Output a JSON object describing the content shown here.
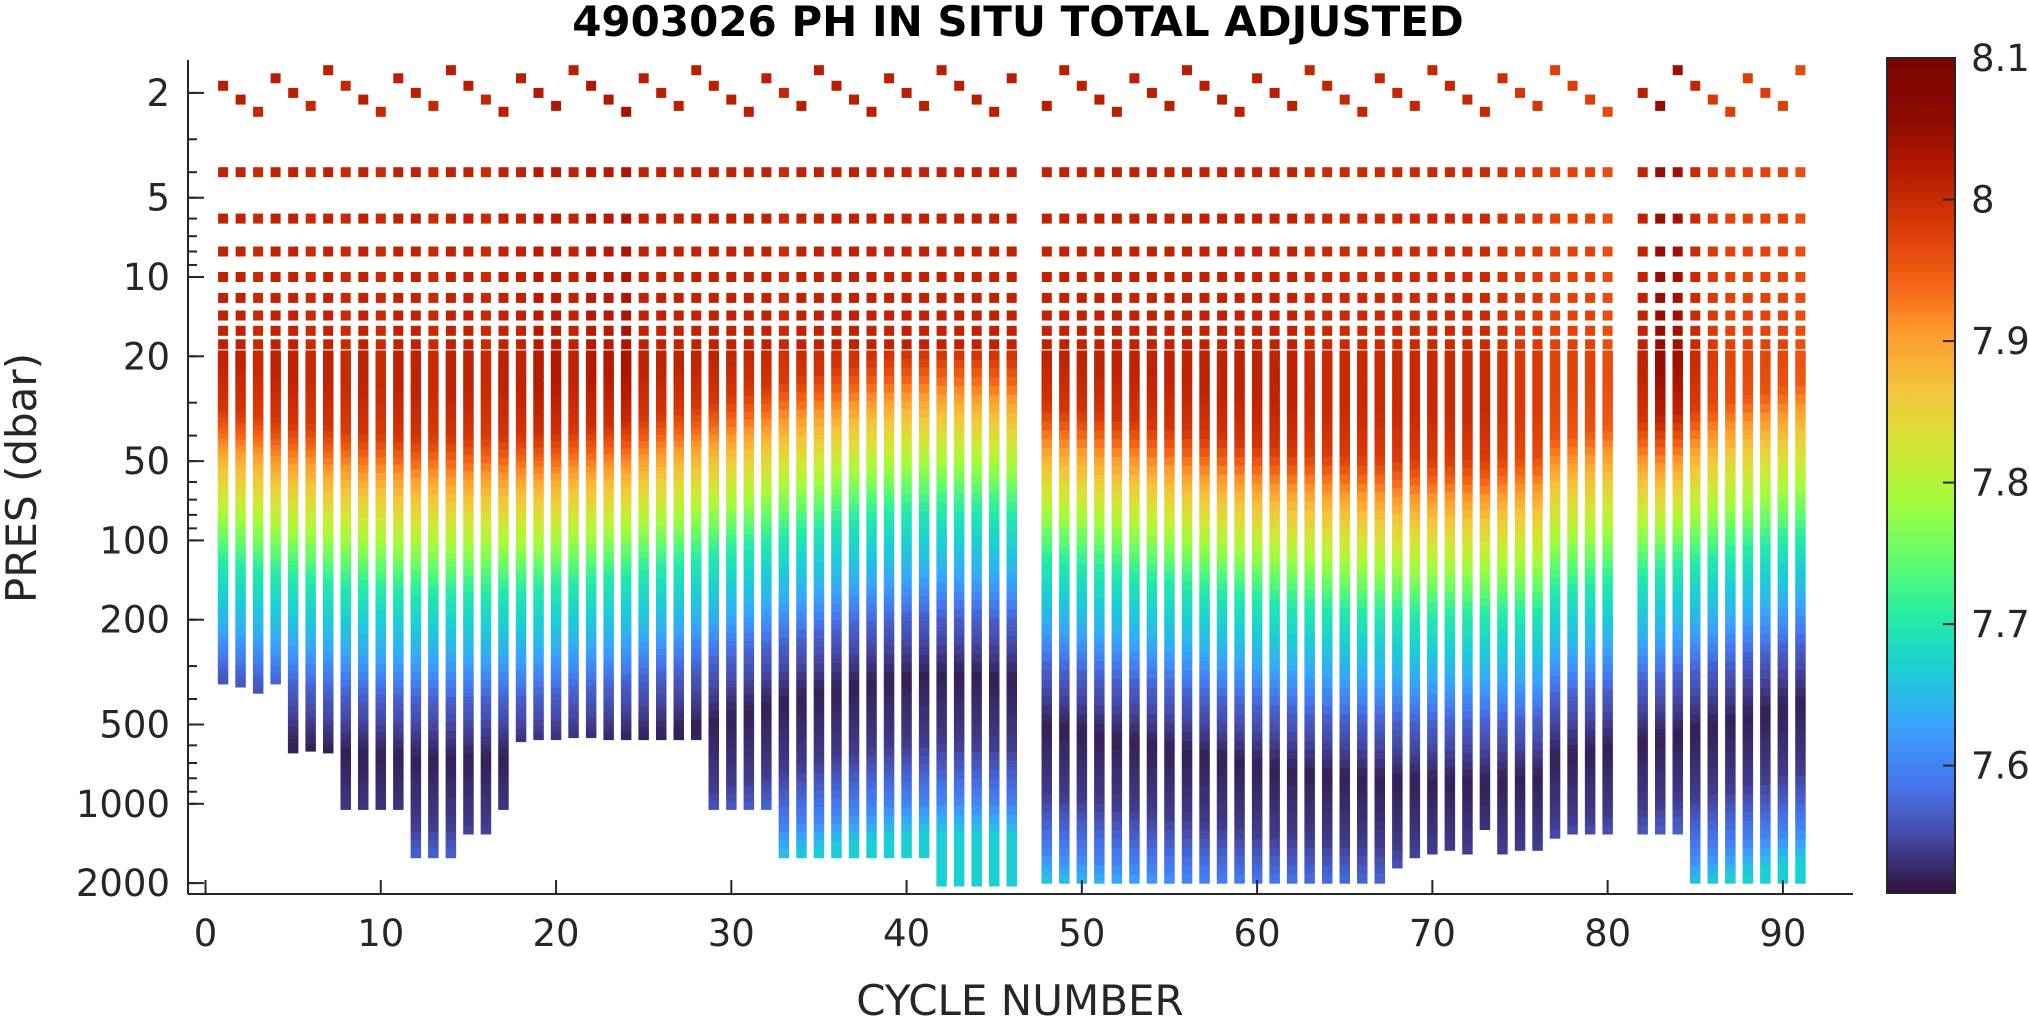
{
  "chart_data": {
    "type": "heatmap",
    "title": "4903026  PH IN SITU TOTAL ADJUSTED",
    "xlabel": "CYCLE NUMBER",
    "ylabel": "PRES (dbar)",
    "xlim": [
      -1,
      94
    ],
    "ylim": [
      1.5,
      2200
    ],
    "y_scale": "log",
    "x_ticks": [
      0,
      10,
      20,
      30,
      40,
      50,
      60,
      70,
      80,
      90
    ],
    "x_tick_labels": [
      "0",
      "10",
      "20",
      "30",
      "40",
      "50",
      "60",
      "70",
      "80",
      "90"
    ],
    "y_ticks": [
      2,
      5,
      10,
      20,
      50,
      100,
      200,
      500,
      1000,
      2000
    ],
    "y_tick_labels": [
      "2",
      "5",
      "10",
      "20",
      "50",
      "100",
      "200",
      "500",
      "1000",
      "2000"
    ],
    "grid": false,
    "colormap": "turbo",
    "colorbar": {
      "clim": [
        7.51,
        8.1
      ],
      "ticks": [
        7.6,
        7.7,
        7.8,
        7.9,
        8.0,
        8.1
      ],
      "tick_labels": [
        "7.6",
        "7.7",
        "7.8",
        "7.9",
        "8",
        "8.1"
      ]
    },
    "discrete_sample_pressures": [
      6,
      8,
      10,
      12,
      14,
      16,
      18
    ],
    "continuous_top_pressure": 19,
    "profiles": [
      [
        1,
        8.01,
        350
      ],
      [
        2,
        8.01,
        360
      ],
      [
        3,
        8.0,
        380
      ],
      [
        4,
        8.01,
        350
      ],
      [
        5,
        8.01,
        640
      ],
      [
        6,
        8.0,
        630
      ],
      [
        7,
        8.01,
        640
      ],
      [
        8,
        8.0,
        1050
      ],
      [
        9,
        8.01,
        1050
      ],
      [
        10,
        8.0,
        1050
      ],
      [
        11,
        8.01,
        1050
      ],
      [
        12,
        8.01,
        1600
      ],
      [
        13,
        8.0,
        1600
      ],
      [
        14,
        8.01,
        1600
      ],
      [
        15,
        8.01,
        1300
      ],
      [
        16,
        8.0,
        1300
      ],
      [
        17,
        8.01,
        1050
      ],
      [
        18,
        8.01,
        580
      ],
      [
        19,
        8.02,
        570
      ],
      [
        20,
        8.02,
        570
      ],
      [
        21,
        8.01,
        560
      ],
      [
        22,
        8.02,
        560
      ],
      [
        23,
        8.02,
        570
      ],
      [
        24,
        8.03,
        570
      ],
      [
        25,
        8.01,
        570
      ],
      [
        26,
        8.01,
        570
      ],
      [
        27,
        8.01,
        570
      ],
      [
        28,
        8.01,
        570
      ],
      [
        29,
        8.01,
        1050
      ],
      [
        30,
        8.01,
        1050
      ],
      [
        31,
        8.01,
        1050
      ],
      [
        32,
        8.01,
        1050
      ],
      [
        33,
        8.0,
        1600
      ],
      [
        34,
        8.01,
        1600
      ],
      [
        35,
        8.01,
        1600
      ],
      [
        36,
        8.01,
        1600
      ],
      [
        37,
        8.01,
        1600
      ],
      [
        38,
        8.01,
        1600
      ],
      [
        39,
        8.01,
        1600
      ],
      [
        40,
        8.01,
        1600
      ],
      [
        41,
        8.01,
        1600
      ],
      [
        42,
        8.01,
        2050
      ],
      [
        43,
        8.01,
        2050
      ],
      [
        44,
        8.01,
        2050
      ],
      [
        45,
        8.01,
        2050
      ],
      [
        46,
        8.01,
        2050
      ],
      [
        48,
        8.01,
        2000
      ],
      [
        49,
        8.01,
        2000
      ],
      [
        50,
        8.01,
        2000
      ],
      [
        51,
        8.01,
        2000
      ],
      [
        52,
        8.01,
        2000
      ],
      [
        53,
        8.01,
        2000
      ],
      [
        54,
        8.01,
        2000
      ],
      [
        55,
        8.01,
        2000
      ],
      [
        56,
        8.01,
        2000
      ],
      [
        57,
        8.01,
        2000
      ],
      [
        58,
        8.01,
        2000
      ],
      [
        59,
        8.01,
        2000
      ],
      [
        60,
        8.01,
        2000
      ],
      [
        61,
        8.01,
        2000
      ],
      [
        62,
        8.01,
        2000
      ],
      [
        63,
        8.0,
        2000
      ],
      [
        64,
        8.0,
        2000
      ],
      [
        65,
        8.0,
        2000
      ],
      [
        66,
        8.0,
        2000
      ],
      [
        67,
        8.0,
        2000
      ],
      [
        68,
        8.0,
        1750
      ],
      [
        69,
        8.0,
        1600
      ],
      [
        70,
        8.0,
        1550
      ],
      [
        71,
        8.0,
        1500
      ],
      [
        72,
        8.0,
        1550
      ],
      [
        73,
        8.0,
        1250
      ],
      [
        74,
        7.99,
        1550
      ],
      [
        75,
        7.98,
        1500
      ],
      [
        76,
        7.98,
        1500
      ],
      [
        77,
        7.97,
        1350
      ],
      [
        78,
        7.97,
        1300
      ],
      [
        79,
        7.97,
        1300
      ],
      [
        80,
        7.96,
        1300
      ],
      [
        82,
        8.01,
        1300
      ],
      [
        83,
        8.05,
        1300
      ],
      [
        84,
        8.04,
        1300
      ],
      [
        85,
        8.0,
        2000
      ],
      [
        86,
        7.98,
        2000
      ],
      [
        87,
        7.97,
        2000
      ],
      [
        88,
        7.97,
        2000
      ],
      [
        89,
        7.97,
        2000
      ],
      [
        90,
        7.97,
        2000
      ],
      [
        91,
        7.96,
        2000
      ]
    ],
    "profile_columns": [
      "cycle",
      "ph_surface",
      "max_pressure"
    ],
    "depth_structure": {
      "pressures": [
        20,
        30,
        50,
        80,
        120,
        200,
        300,
        500,
        900,
        1500,
        2000
      ],
      "ph_values": [
        8.0,
        7.98,
        7.87,
        7.78,
        7.7,
        7.64,
        7.57,
        7.52,
        7.54,
        7.6,
        7.67
      ]
    }
  }
}
